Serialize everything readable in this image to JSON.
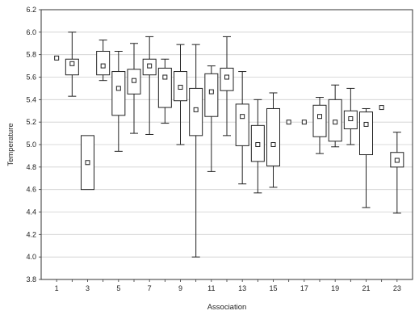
{
  "chart_data": {
    "type": "box",
    "title": "",
    "xlabel": "Association",
    "ylabel": "Temperature",
    "ylim": [
      3.8,
      6.2
    ],
    "y_ticks": [
      "3.8",
      "4.0",
      "4.2",
      "4.4",
      "4.6",
      "4.8",
      "5.0",
      "5.2",
      "5.4",
      "5.6",
      "5.8",
      "6.0",
      "6.2"
    ],
    "x_ticks": [
      "1",
      "3",
      "5",
      "7",
      "9",
      "11",
      "13",
      "15",
      "17",
      "19",
      "21",
      "23"
    ],
    "grid": "horizontal",
    "legend": "none",
    "colors": {
      "frame": "#333333",
      "box": "#222222",
      "grid": "#cfcfcf",
      "background": "#ffffff"
    },
    "categories": [
      "1",
      "2",
      "3",
      "4",
      "5",
      "6",
      "7",
      "8",
      "9",
      "10",
      "11",
      "12",
      "13",
      "14",
      "15",
      "16",
      "17",
      "18",
      "19",
      "20",
      "21",
      "22",
      "23"
    ],
    "boxes": [
      {
        "x": 1,
        "median": 5.77
      },
      {
        "x": 2,
        "median": 5.72,
        "q1": 5.62,
        "q3": 5.76,
        "min": 5.43,
        "max": 6.0
      },
      {
        "x": 3,
        "median": 4.84,
        "q1": 4.6,
        "q3": 5.08
      },
      {
        "x": 4,
        "median": 5.7,
        "q1": 5.62,
        "q3": 5.83,
        "min": 5.57,
        "max": 5.93
      },
      {
        "x": 5,
        "median": 5.5,
        "q1": 5.26,
        "q3": 5.65,
        "min": 4.94,
        "max": 5.83
      },
      {
        "x": 6,
        "median": 5.57,
        "q1": 5.45,
        "q3": 5.67,
        "min": 5.1,
        "max": 5.9
      },
      {
        "x": 7,
        "median": 5.7,
        "q1": 5.62,
        "q3": 5.76,
        "min": 5.09,
        "max": 5.96
      },
      {
        "x": 8,
        "median": 5.6,
        "q1": 5.33,
        "q3": 5.68,
        "min": 5.19,
        "max": 5.76
      },
      {
        "x": 9,
        "median": 5.51,
        "q1": 5.39,
        "q3": 5.65,
        "min": 5.0,
        "max": 5.89
      },
      {
        "x": 10,
        "median": 5.31,
        "q1": 5.08,
        "q3": 5.5,
        "min": 4.0,
        "max": 5.89
      },
      {
        "x": 11,
        "median": 5.47,
        "q1": 5.25,
        "q3": 5.63,
        "min": 4.76,
        "max": 5.7
      },
      {
        "x": 12,
        "median": 5.6,
        "q1": 5.48,
        "q3": 5.68,
        "min": 5.08,
        "max": 5.96
      },
      {
        "x": 13,
        "median": 5.25,
        "q1": 4.99,
        "q3": 5.36,
        "min": 4.65,
        "max": 5.65
      },
      {
        "x": 14,
        "median": 5.0,
        "q1": 4.85,
        "q3": 5.17,
        "min": 4.57,
        "max": 5.4
      },
      {
        "x": 15,
        "median": 5.0,
        "q1": 4.81,
        "q3": 5.32,
        "min": 4.62,
        "max": 5.46
      },
      {
        "x": 16,
        "median": 5.2
      },
      {
        "x": 17,
        "median": 5.2
      },
      {
        "x": 18,
        "median": 5.25,
        "q1": 5.07,
        "q3": 5.35,
        "min": 4.92,
        "max": 5.42
      },
      {
        "x": 19,
        "median": 5.2,
        "q1": 5.03,
        "q3": 5.4,
        "min": 4.98,
        "max": 5.53
      },
      {
        "x": 20,
        "median": 5.23,
        "q1": 5.14,
        "q3": 5.3,
        "min": 5.0,
        "max": 5.5
      },
      {
        "x": 21,
        "median": 5.18,
        "q1": 4.91,
        "q3": 5.29,
        "min": 4.44,
        "max": 5.32
      },
      {
        "x": 22,
        "median": 5.33
      },
      {
        "x": 23,
        "median": 4.86,
        "q1": 4.8,
        "q3": 4.93,
        "min": 4.39,
        "max": 5.11
      }
    ]
  }
}
